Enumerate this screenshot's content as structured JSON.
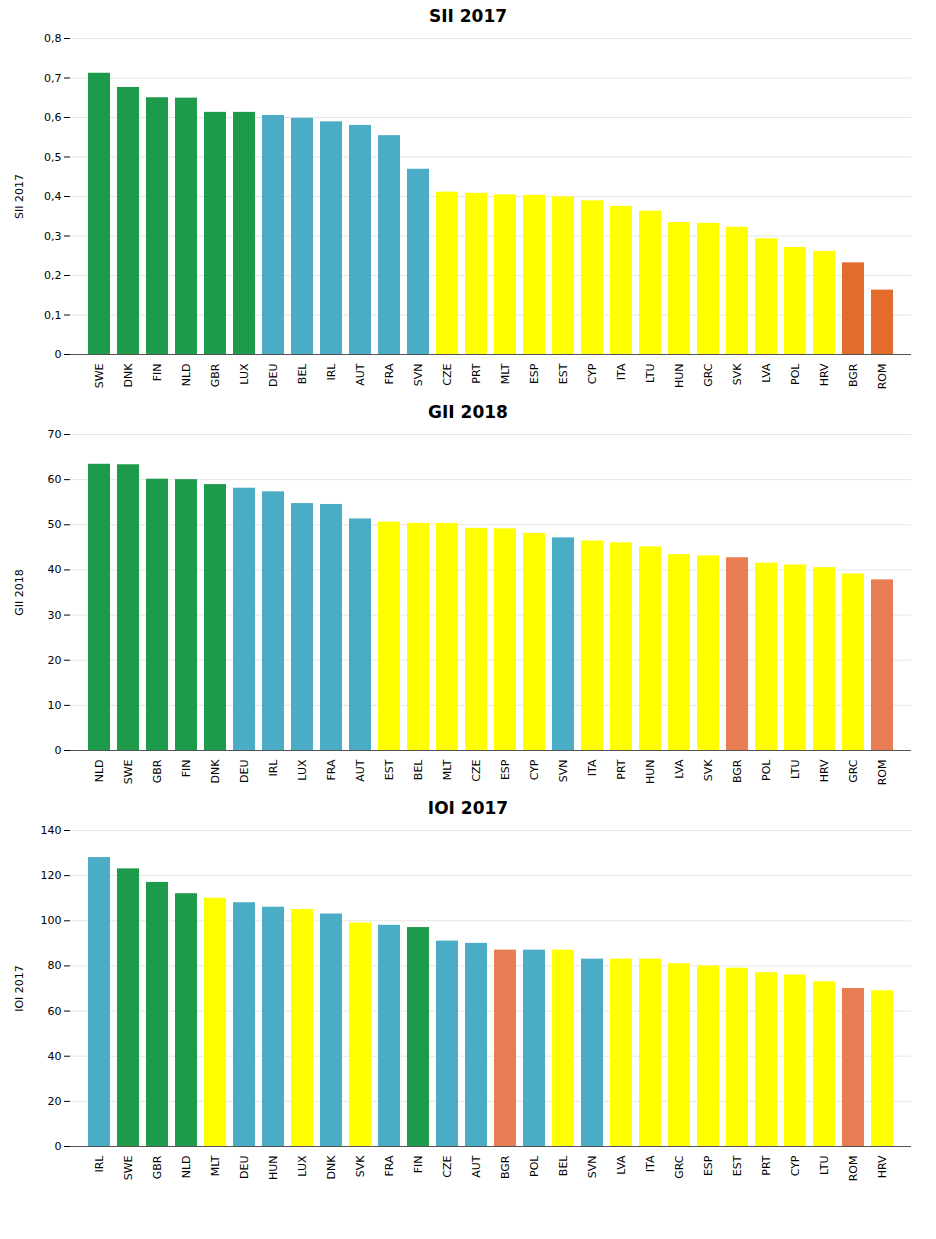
{
  "chart_data": [
    {
      "type": "bar",
      "title": "SII 2017",
      "ylabel": "SII 2017",
      "categories": [
        "SWE",
        "DNK",
        "FIN",
        "NLD",
        "GBR",
        "LUX",
        "DEU",
        "BEL",
        "IRL",
        "AUT",
        "FRA",
        "SVN",
        "CZE",
        "PRT",
        "MLT",
        "ESP",
        "EST",
        "CYP",
        "ITA",
        "LTU",
        "HUN",
        "GRC",
        "SVK",
        "LVA",
        "POL",
        "HRV",
        "BGR",
        "ROM"
      ],
      "values": [
        0.712,
        0.676,
        0.65,
        0.649,
        0.613,
        0.613,
        0.605,
        0.598,
        0.589,
        0.58,
        0.554,
        0.469,
        0.411,
        0.408,
        0.404,
        0.403,
        0.399,
        0.389,
        0.375,
        0.363,
        0.334,
        0.332,
        0.322,
        0.293,
        0.271,
        0.261,
        0.232,
        0.163
      ],
      "colors": [
        "#1e9b4a",
        "#1e9b4a",
        "#1e9b4a",
        "#1e9b4a",
        "#1e9b4a",
        "#1e9b4a",
        "#4bacc6",
        "#4bacc6",
        "#4bacc6",
        "#4bacc6",
        "#4bacc6",
        "#4bacc6",
        "#ffff00",
        "#ffff00",
        "#ffff00",
        "#ffff00",
        "#ffff00",
        "#ffff00",
        "#ffff00",
        "#ffff00",
        "#ffff00",
        "#ffff00",
        "#ffff00",
        "#ffff00",
        "#ffff00",
        "#ffff00",
        "#e36c2d",
        "#e36c2d"
      ],
      "ylim": [
        0,
        0.8
      ],
      "yticks": [
        0,
        {
          "value": 0.1,
          "label": "0,1"
        },
        {
          "value": 0.2,
          "label": "0,2"
        },
        {
          "value": 0.3,
          "label": "0,3"
        },
        {
          "value": 0.4,
          "label": "0,4"
        },
        {
          "value": 0.5,
          "label": "0,5"
        },
        {
          "value": 0.6,
          "label": "0,6"
        },
        {
          "value": 0.7,
          "label": "0,7"
        },
        {
          "value": 0.8,
          "label": "0,8"
        }
      ],
      "grid": true
    },
    {
      "type": "bar",
      "title": "GII 2018",
      "ylabel": "GII 2018",
      "categories": [
        "NLD",
        "SWE",
        "GBR",
        "FIN",
        "DNK",
        "DEU",
        "IRL",
        "LUX",
        "FRA",
        "AUT",
        "EST",
        "BEL",
        "MLT",
        "CZE",
        "ESP",
        "CYP",
        "SVN",
        "ITA",
        "PRT",
        "HUN",
        "LVA",
        "SVK",
        "BGR",
        "POL",
        "LTU",
        "HRV",
        "GRC",
        "ROM"
      ],
      "values": [
        63.4,
        63.3,
        60.1,
        60.0,
        58.9,
        58.1,
        57.3,
        54.7,
        54.5,
        51.3,
        50.6,
        50.3,
        50.3,
        49.2,
        49.1,
        48.1,
        47.1,
        46.4,
        46.0,
        45.1,
        43.4,
        43.1,
        42.7,
        41.5,
        41.1,
        40.5,
        39.1,
        37.8
      ],
      "colors": [
        "#1e9b4a",
        "#1e9b4a",
        "#1e9b4a",
        "#1e9b4a",
        "#1e9b4a",
        "#4bacc6",
        "#4bacc6",
        "#4bacc6",
        "#4bacc6",
        "#4bacc6",
        "#ffff00",
        "#ffff00",
        "#ffff00",
        "#ffff00",
        "#ffff00",
        "#ffff00",
        "#4bacc6",
        "#ffff00",
        "#ffff00",
        "#ffff00",
        "#ffff00",
        "#ffff00",
        "#e87c52",
        "#ffff00",
        "#ffff00",
        "#ffff00",
        "#ffff00",
        "#e87c52"
      ],
      "ylim": [
        0,
        70
      ],
      "yticks": [
        0,
        10,
        20,
        30,
        40,
        50,
        60,
        70
      ],
      "grid": true
    },
    {
      "type": "bar",
      "title": "IOI 2017",
      "ylabel": "IOI 2017",
      "categories": [
        "IRL",
        "SWE",
        "GBR",
        "NLD",
        "MLT",
        "DEU",
        "HUN",
        "LUX",
        "DNK",
        "SVK",
        "FRA",
        "FIN",
        "CZE",
        "AUT",
        "BGR",
        "POL",
        "BEL",
        "SVN",
        "LVA",
        "ITA",
        "GRC",
        "ESP",
        "EST",
        "PRT",
        "CYP",
        "LTU",
        "ROM",
        "HRV"
      ],
      "values": [
        128,
        123,
        117,
        112,
        110,
        108,
        106,
        105,
        103,
        99,
        98,
        97,
        91,
        90,
        87,
        87,
        87,
        83,
        83,
        83,
        81,
        80,
        79,
        77,
        76,
        73,
        70,
        69
      ],
      "colors": [
        "#4bacc6",
        "#1e9b4a",
        "#1e9b4a",
        "#1e9b4a",
        "#ffff00",
        "#4bacc6",
        "#4bacc6",
        "#ffff00",
        "#4bacc6",
        "#ffff00",
        "#4bacc6",
        "#1e9b4a",
        "#4bacc6",
        "#4bacc6",
        "#e87c52",
        "#4bacc6",
        "#ffff00",
        "#4bacc6",
        "#ffff00",
        "#ffff00",
        "#ffff00",
        "#ffff00",
        "#ffff00",
        "#ffff00",
        "#ffff00",
        "#ffff00",
        "#e87c52",
        "#ffff00"
      ],
      "ylim": [
        0,
        140
      ],
      "yticks": [
        0,
        20,
        40,
        60,
        80,
        100,
        120,
        140
      ],
      "grid": true
    }
  ]
}
